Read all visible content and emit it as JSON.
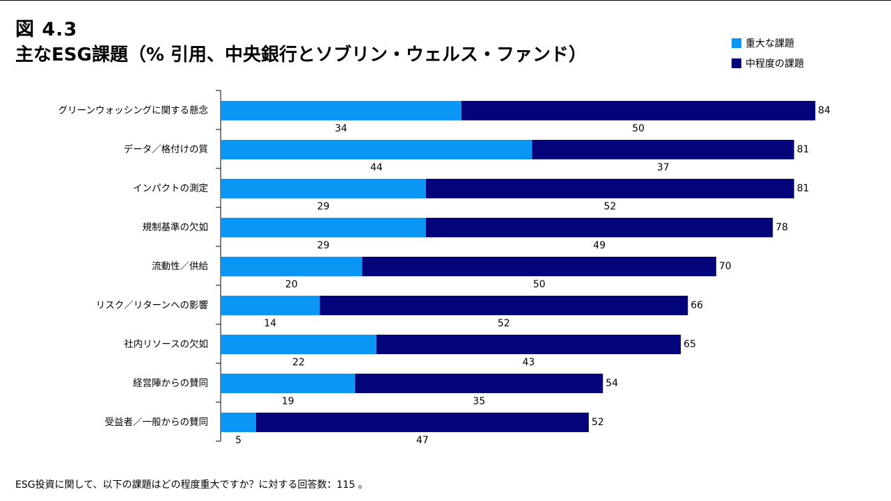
{
  "figure": {
    "label": "図 4.3",
    "title": "主なESG課題（% 引用、中央銀行とソブリン・ウェルス・ファンド）"
  },
  "footnote": "ESG投資に関して、以下の課題はどの程度重大ですか？に対する回答数：115 。",
  "colors": {
    "series1": "#0a96f5",
    "series2": "#03037a",
    "axis": "#000000"
  },
  "chart_data": {
    "type": "bar",
    "orientation": "horizontal",
    "stacked": true,
    "title": "主なESG課題（% 引用、中央銀行とソブリン・ウェルス・ファンド）",
    "xlim": [
      0,
      84
    ],
    "legend_position": "top-right",
    "categories": [
      "グリーンウォッシングに関する懸念",
      "データ／格付けの質",
      "インパクトの測定",
      "規制基準の欠如",
      "流動性／供給",
      "リスク／リターンへの影響",
      "社内リソースの欠如",
      "経営陣からの賛同",
      "受益者／一般からの賛同"
    ],
    "series": [
      {
        "name": "重大な課題",
        "values": [
          34,
          44,
          29,
          29,
          20,
          14,
          22,
          19,
          5
        ]
      },
      {
        "name": "中程度の課題",
        "values": [
          50,
          37,
          52,
          49,
          50,
          52,
          43,
          35,
          47
        ]
      }
    ],
    "totals": [
      84,
      81,
      81,
      78,
      70,
      66,
      65,
      54,
      52
    ]
  }
}
